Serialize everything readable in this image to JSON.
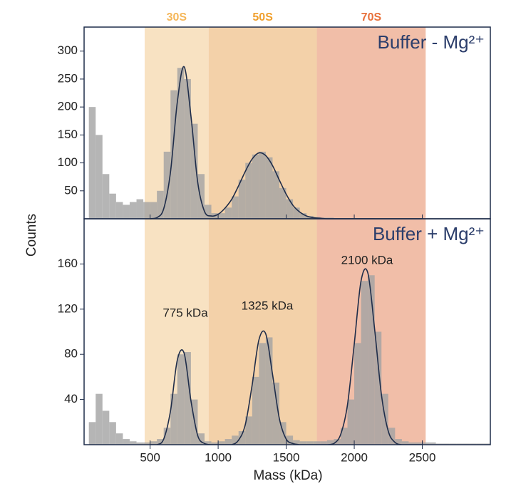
{
  "regions": [
    {
      "label": "30S",
      "range": [
        460,
        930
      ],
      "color": "#f8e2c2",
      "label_color": "#f5b75a"
    },
    {
      "label": "50S",
      "range": [
        930,
        1725
      ],
      "color": "#f3d1a9",
      "label_color": "#f0a02e"
    },
    {
      "label": "70S",
      "range": [
        1725,
        2525
      ],
      "color": "#f1bea8",
      "label_color": "#e8703a"
    }
  ],
  "x_axis": {
    "label": "Mass (kDa)",
    "xlim": [
      15,
      3000
    ],
    "xticks": [
      500,
      1000,
      1500,
      2000,
      2500
    ]
  },
  "y_label": "Counts",
  "chart_data": [
    {
      "type": "histogram",
      "title": "Buffer - Mg²⁺",
      "color": "#a3a3a3",
      "bins": [
        50,
        100,
        150,
        200,
        250,
        300,
        350,
        400,
        450,
        500,
        550,
        600,
        650,
        700,
        750,
        800,
        850,
        900,
        950,
        1000,
        1050,
        1100,
        1150,
        1200,
        1250,
        1300,
        1350,
        1400,
        1450,
        1500,
        1550,
        1600,
        1650,
        1700,
        1750,
        1800,
        1850,
        1900,
        1950,
        2000,
        2050,
        2100,
        2150,
        2200,
        2250,
        2300,
        2350,
        2400,
        2450,
        2500,
        2550,
        2600,
        2650,
        2700,
        2750,
        2800,
        2850,
        2900,
        2950,
        3000
      ],
      "values": [
        200,
        150,
        80,
        45,
        30,
        25,
        30,
        35,
        30,
        30,
        50,
        120,
        230,
        270,
        250,
        170,
        80,
        25,
        10,
        10,
        20,
        40,
        70,
        100,
        115,
        120,
        110,
        85,
        55,
        35,
        20,
        10,
        5,
        3,
        2,
        2,
        1,
        1,
        1,
        1,
        1,
        1,
        0,
        0,
        0,
        0,
        0,
        0,
        0,
        0,
        0,
        0,
        0,
        0,
        0,
        0,
        0,
        0,
        0
      ],
      "ylim": [
        0,
        343
      ],
      "yticks": [
        50,
        100,
        150,
        200,
        250,
        300
      ],
      "fit": {
        "color": "#1f2d4a",
        "x": [
          500,
          550,
          600,
          650,
          700,
          750,
          800,
          850,
          900,
          950,
          1000,
          1050,
          1100,
          1150,
          1200,
          1250,
          1300,
          1350,
          1400,
          1450,
          1500,
          1550,
          1600,
          1650,
          1700,
          1750,
          1800,
          1850,
          1900,
          1950,
          2000,
          2050,
          2100,
          2150,
          2200,
          2250,
          2300,
          2350,
          2400,
          2450,
          2500
        ],
        "values": [
          0,
          2,
          18,
          84,
          209,
          272,
          184,
          65,
          13,
          5,
          8,
          19,
          35,
          59,
          85,
          107,
          118,
          113,
          95,
          69,
          44,
          24,
          12,
          5,
          2,
          1,
          0,
          0,
          0,
          0,
          0,
          0,
          0,
          0,
          0,
          0,
          0,
          0,
          0,
          0,
          0
        ]
      }
    },
    {
      "type": "histogram",
      "title": "Buffer + Mg²⁺",
      "color": "#a3a3a3",
      "bins": [
        50,
        100,
        150,
        200,
        250,
        300,
        350,
        400,
        450,
        500,
        550,
        600,
        650,
        700,
        750,
        800,
        850,
        900,
        950,
        1000,
        1050,
        1100,
        1150,
        1200,
        1250,
        1300,
        1350,
        1400,
        1450,
        1500,
        1550,
        1600,
        1650,
        1700,
        1750,
        1800,
        1850,
        1900,
        1950,
        2000,
        2050,
        2100,
        2150,
        2200,
        2250,
        2300,
        2350,
        2400,
        2450,
        2500,
        2550,
        2600,
        2650,
        2700,
        2750,
        2800,
        2850,
        2900,
        2950,
        3000
      ],
      "values": [
        20,
        45,
        30,
        20,
        10,
        5,
        3,
        2,
        2,
        3,
        5,
        15,
        45,
        80,
        82,
        40,
        10,
        3,
        2,
        3,
        5,
        8,
        12,
        25,
        60,
        90,
        95,
        55,
        20,
        8,
        4,
        3,
        3,
        3,
        3,
        4,
        5,
        15,
        40,
        90,
        145,
        150,
        100,
        45,
        15,
        5,
        3,
        2,
        2,
        2,
        2,
        1,
        1,
        1,
        1,
        1,
        1,
        1,
        1
      ],
      "ylim": [
        0,
        200
      ],
      "yticks": [
        40,
        80,
        120,
        160
      ],
      "annotations": [
        "775 kDa",
        "1325 kDa",
        "2100 kDa"
      ],
      "fit": {
        "color": "#1f2d4a",
        "x": [
          500,
          550,
          600,
          650,
          700,
          750,
          800,
          850,
          900,
          950,
          1000,
          1050,
          1100,
          1150,
          1200,
          1250,
          1300,
          1350,
          1400,
          1450,
          1500,
          1550,
          1600,
          1650,
          1700,
          1750,
          1800,
          1850,
          1900,
          1950,
          2000,
          2050,
          2100,
          2150,
          2200,
          2250,
          2300,
          2350,
          2400,
          2450,
          2500
        ],
        "values": [
          0,
          0,
          5,
          30,
          75,
          81,
          39,
          8,
          1,
          0,
          0,
          0,
          0,
          4,
          18,
          53,
          93,
          98,
          62,
          23,
          5,
          1,
          0,
          0,
          0,
          0,
          0,
          1,
          9,
          35,
          89,
          145,
          152,
          102,
          44,
          12,
          2,
          0,
          0,
          0,
          0
        ]
      }
    }
  ]
}
